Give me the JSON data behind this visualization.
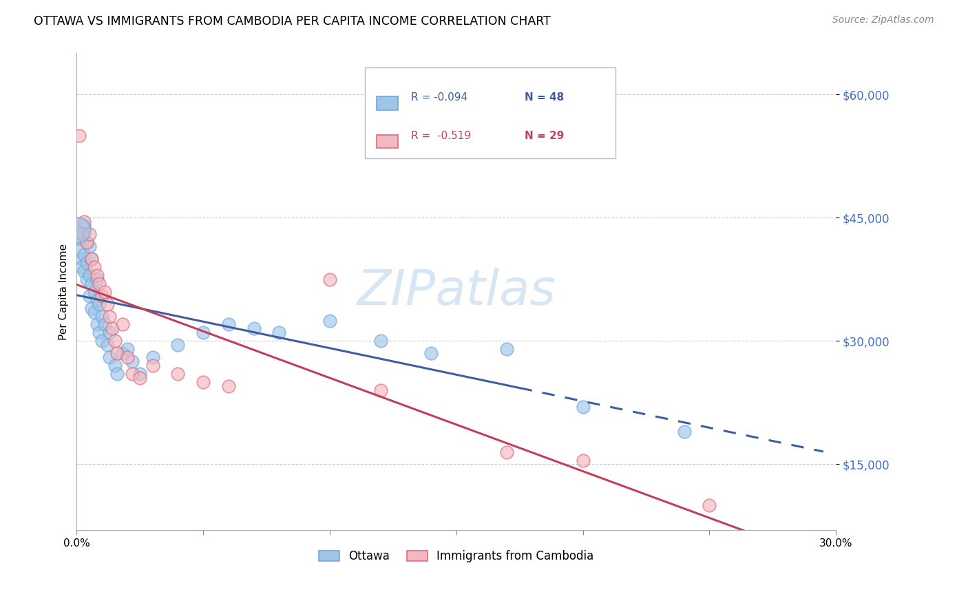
{
  "title": "OTTAWA VS IMMIGRANTS FROM CAMBODIA PER CAPITA INCOME CORRELATION CHART",
  "source": "Source: ZipAtlas.com",
  "ylabel": "Per Capita Income",
  "yticks": [
    15000,
    30000,
    45000,
    60000
  ],
  "ytick_labels": [
    "$15,000",
    "$30,000",
    "$45,000",
    "$60,000"
  ],
  "xlim": [
    0.0,
    0.3
  ],
  "ylim": [
    7000,
    65000
  ],
  "legend_ottawa_r": "R = -0.094",
  "legend_ottawa_n": "N = 48",
  "legend_cambodia_r": "R =  -0.519",
  "legend_cambodia_n": "N = 29",
  "legend_label_ottawa": "Ottawa",
  "legend_label_cambodia": "Immigrants from Cambodia",
  "blue_fill": "#9fc5e8",
  "blue_edge": "#6fa8dc",
  "pink_fill": "#f4b8c1",
  "pink_edge": "#e06b7d",
  "blue_line_color": "#3d5fa0",
  "pink_line_color": "#c0405a",
  "watermark": "ZIPatlas",
  "watermark_color": "#cfe2f3",
  "ottawa_points": [
    [
      0.001,
      42500
    ],
    [
      0.001,
      41000
    ],
    [
      0.002,
      43000
    ],
    [
      0.002,
      40000
    ],
    [
      0.002,
      39000
    ],
    [
      0.003,
      44000
    ],
    [
      0.003,
      40500
    ],
    [
      0.003,
      38500
    ],
    [
      0.004,
      42000
    ],
    [
      0.004,
      39500
    ],
    [
      0.004,
      37500
    ],
    [
      0.005,
      41500
    ],
    [
      0.005,
      38000
    ],
    [
      0.005,
      35500
    ],
    [
      0.006,
      40000
    ],
    [
      0.006,
      37000
    ],
    [
      0.006,
      34000
    ],
    [
      0.007,
      36000
    ],
    [
      0.007,
      33500
    ],
    [
      0.008,
      37500
    ],
    [
      0.008,
      35000
    ],
    [
      0.008,
      32000
    ],
    [
      0.009,
      34500
    ],
    [
      0.009,
      31000
    ],
    [
      0.01,
      33000
    ],
    [
      0.01,
      30000
    ],
    [
      0.011,
      32000
    ],
    [
      0.012,
      29500
    ],
    [
      0.013,
      31000
    ],
    [
      0.013,
      28000
    ],
    [
      0.015,
      27000
    ],
    [
      0.016,
      26000
    ],
    [
      0.018,
      28500
    ],
    [
      0.02,
      29000
    ],
    [
      0.022,
      27500
    ],
    [
      0.025,
      26000
    ],
    [
      0.03,
      28000
    ],
    [
      0.04,
      29500
    ],
    [
      0.05,
      31000
    ],
    [
      0.06,
      32000
    ],
    [
      0.07,
      31500
    ],
    [
      0.08,
      31000
    ],
    [
      0.1,
      32500
    ],
    [
      0.12,
      30000
    ],
    [
      0.14,
      28500
    ],
    [
      0.17,
      29000
    ],
    [
      0.2,
      22000
    ],
    [
      0.24,
      19000
    ]
  ],
  "cambodia_points": [
    [
      0.001,
      55000
    ],
    [
      0.002,
      43000
    ],
    [
      0.003,
      44500
    ],
    [
      0.004,
      42000
    ],
    [
      0.005,
      43000
    ],
    [
      0.006,
      40000
    ],
    [
      0.007,
      39000
    ],
    [
      0.008,
      38000
    ],
    [
      0.009,
      37000
    ],
    [
      0.01,
      35500
    ],
    [
      0.011,
      36000
    ],
    [
      0.012,
      34500
    ],
    [
      0.013,
      33000
    ],
    [
      0.014,
      31500
    ],
    [
      0.015,
      30000
    ],
    [
      0.016,
      28500
    ],
    [
      0.018,
      32000
    ],
    [
      0.02,
      28000
    ],
    [
      0.022,
      26000
    ],
    [
      0.025,
      25500
    ],
    [
      0.03,
      27000
    ],
    [
      0.04,
      26000
    ],
    [
      0.05,
      25000
    ],
    [
      0.06,
      24500
    ],
    [
      0.1,
      37500
    ],
    [
      0.12,
      24000
    ],
    [
      0.17,
      16500
    ],
    [
      0.2,
      15500
    ],
    [
      0.25,
      10000
    ]
  ],
  "blue_line_solid_end": 0.175,
  "pink_line_end": 0.295
}
